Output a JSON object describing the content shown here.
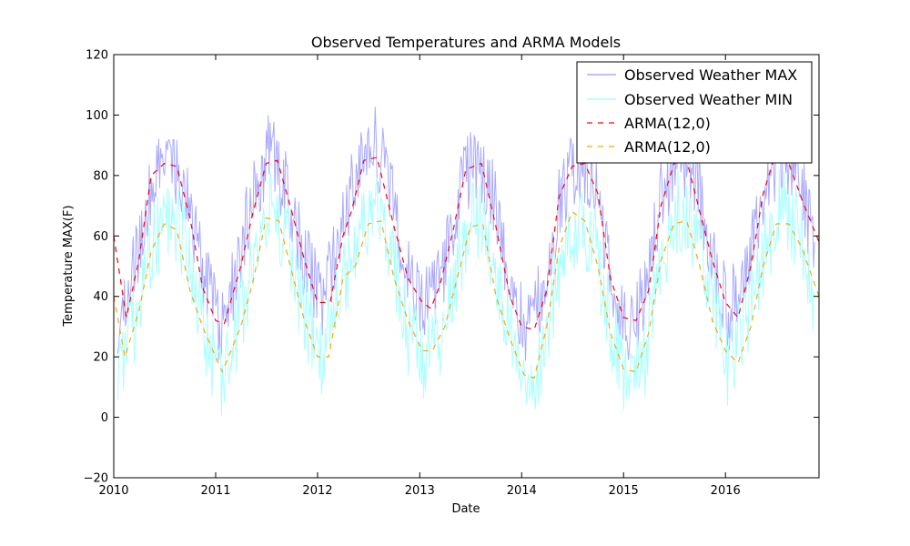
{
  "chart_data": {
    "type": "line",
    "title": "Observed Temperatures and ARMA Models",
    "xlabel": "Date",
    "ylabel": "Temperature MAX(F)",
    "x_range": [
      "2010-01-01",
      "2016-12-01"
    ],
    "ylim": [
      -20,
      120
    ],
    "x_ticks": [
      "2010",
      "2011",
      "2012",
      "2013",
      "2014",
      "2015",
      "2016"
    ],
    "y_ticks": [
      "−20",
      "0",
      "20",
      "40",
      "60",
      "80",
      "100",
      "120"
    ],
    "grid": false,
    "legend_position": "top-right",
    "series": [
      {
        "name": "Observed Weather MAX",
        "color": "#aaaaff",
        "style": "solid",
        "sampling": "daily",
        "values_monthly_approx": [
          {
            "x": "2010-01",
            "y": 32
          },
          {
            "x": "2010-03",
            "y": 52
          },
          {
            "x": "2010-05",
            "y": 75
          },
          {
            "x": "2010-07",
            "y": 86
          },
          {
            "x": "2010-09",
            "y": 75
          },
          {
            "x": "2010-11",
            "y": 50
          },
          {
            "x": "2011-01",
            "y": 30
          },
          {
            "x": "2011-03",
            "y": 48
          },
          {
            "x": "2011-05",
            "y": 74
          },
          {
            "x": "2011-07",
            "y": 89
          },
          {
            "x": "2011-09",
            "y": 74
          },
          {
            "x": "2011-11",
            "y": 52
          },
          {
            "x": "2012-01",
            "y": 38
          },
          {
            "x": "2012-03",
            "y": 58
          },
          {
            "x": "2012-05",
            "y": 80
          },
          {
            "x": "2012-07",
            "y": 92
          },
          {
            "x": "2012-09",
            "y": 78
          },
          {
            "x": "2012-11",
            "y": 48
          },
          {
            "x": "2013-01",
            "y": 38
          },
          {
            "x": "2013-03",
            "y": 44
          },
          {
            "x": "2013-05",
            "y": 72
          },
          {
            "x": "2013-07",
            "y": 86
          },
          {
            "x": "2013-09",
            "y": 76
          },
          {
            "x": "2013-11",
            "y": 48
          },
          {
            "x": "2014-01",
            "y": 28
          },
          {
            "x": "2014-03",
            "y": 40
          },
          {
            "x": "2014-05",
            "y": 72
          },
          {
            "x": "2014-07",
            "y": 84
          },
          {
            "x": "2014-09",
            "y": 80
          },
          {
            "x": "2014-11",
            "y": 48
          },
          {
            "x": "2015-01",
            "y": 30
          },
          {
            "x": "2015-03",
            "y": 38
          },
          {
            "x": "2015-05",
            "y": 72
          },
          {
            "x": "2015-07",
            "y": 86
          },
          {
            "x": "2015-09",
            "y": 80
          },
          {
            "x": "2015-11",
            "y": 55
          },
          {
            "x": "2016-01",
            "y": 34
          },
          {
            "x": "2016-03",
            "y": 52
          },
          {
            "x": "2016-05",
            "y": 72
          },
          {
            "x": "2016-07",
            "y": 88
          },
          {
            "x": "2016-09",
            "y": 80
          },
          {
            "x": "2016-11",
            "y": 58
          }
        ]
      },
      {
        "name": "Observed Weather MIN",
        "color": "#aaffff",
        "style": "solid",
        "sampling": "daily",
        "values_monthly_approx": [
          {
            "x": "2010-01",
            "y": 15
          },
          {
            "x": "2010-03",
            "y": 32
          },
          {
            "x": "2010-05",
            "y": 55
          },
          {
            "x": "2010-07",
            "y": 68
          },
          {
            "x": "2010-09",
            "y": 58
          },
          {
            "x": "2010-11",
            "y": 32
          },
          {
            "x": "2011-01",
            "y": 12
          },
          {
            "x": "2011-03",
            "y": 28
          },
          {
            "x": "2011-05",
            "y": 52
          },
          {
            "x": "2011-07",
            "y": 70
          },
          {
            "x": "2011-09",
            "y": 58
          },
          {
            "x": "2011-11",
            "y": 35
          },
          {
            "x": "2012-01",
            "y": 20
          },
          {
            "x": "2012-03",
            "y": 38
          },
          {
            "x": "2012-05",
            "y": 56
          },
          {
            "x": "2012-07",
            "y": 70
          },
          {
            "x": "2012-09",
            "y": 60
          },
          {
            "x": "2012-11",
            "y": 28
          },
          {
            "x": "2013-01",
            "y": 20
          },
          {
            "x": "2013-03",
            "y": 25
          },
          {
            "x": "2013-05",
            "y": 50
          },
          {
            "x": "2013-07",
            "y": 66
          },
          {
            "x": "2013-09",
            "y": 56
          },
          {
            "x": "2013-11",
            "y": 30
          },
          {
            "x": "2014-01",
            "y": 6
          },
          {
            "x": "2014-03",
            "y": 20
          },
          {
            "x": "2014-05",
            "y": 50
          },
          {
            "x": "2014-07",
            "y": 64
          },
          {
            "x": "2014-09",
            "y": 60
          },
          {
            "x": "2014-11",
            "y": 30
          },
          {
            "x": "2015-01",
            "y": 10
          },
          {
            "x": "2015-03",
            "y": 18
          },
          {
            "x": "2015-05",
            "y": 52
          },
          {
            "x": "2015-07",
            "y": 68
          },
          {
            "x": "2015-09",
            "y": 62
          },
          {
            "x": "2015-11",
            "y": 38
          },
          {
            "x": "2016-01",
            "y": 15
          },
          {
            "x": "2016-03",
            "y": 32
          },
          {
            "x": "2016-05",
            "y": 52
          },
          {
            "x": "2016-07",
            "y": 70
          },
          {
            "x": "2016-09",
            "y": 62
          },
          {
            "x": "2016-11",
            "y": 40
          }
        ]
      },
      {
        "name": "ARMA(12,0)",
        "color": "#ff0000",
        "style": "dashed",
        "values": [
          {
            "x": "2010-01-01",
            "y": 60
          },
          {
            "x": "2010-02-15",
            "y": 33
          },
          {
            "x": "2010-04-01",
            "y": 52
          },
          {
            "x": "2010-05-15",
            "y": 80
          },
          {
            "x": "2010-07-01",
            "y": 84
          },
          {
            "x": "2010-08-15",
            "y": 83
          },
          {
            "x": "2010-10-01",
            "y": 66
          },
          {
            "x": "2010-11-15",
            "y": 43
          },
          {
            "x": "2011-01-01",
            "y": 32
          },
          {
            "x": "2011-02-01",
            "y": 31
          },
          {
            "x": "2011-04-01",
            "y": 50
          },
          {
            "x": "2011-05-15",
            "y": 68
          },
          {
            "x": "2011-07-01",
            "y": 84
          },
          {
            "x": "2011-08-10",
            "y": 85
          },
          {
            "x": "2011-10-01",
            "y": 68
          },
          {
            "x": "2011-11-15",
            "y": 52
          },
          {
            "x": "2012-01-01",
            "y": 38
          },
          {
            "x": "2012-02-15",
            "y": 38
          },
          {
            "x": "2012-04-01",
            "y": 60
          },
          {
            "x": "2012-05-01",
            "y": 68
          },
          {
            "x": "2012-06-15",
            "y": 85
          },
          {
            "x": "2012-08-01",
            "y": 86
          },
          {
            "x": "2012-10-01",
            "y": 63
          },
          {
            "x": "2012-11-20",
            "y": 46
          },
          {
            "x": "2013-01-10",
            "y": 38
          },
          {
            "x": "2013-02-10",
            "y": 36
          },
          {
            "x": "2013-03-15",
            "y": 44
          },
          {
            "x": "2013-05-01",
            "y": 62
          },
          {
            "x": "2013-06-15",
            "y": 82
          },
          {
            "x": "2013-08-10",
            "y": 84
          },
          {
            "x": "2013-10-01",
            "y": 63
          },
          {
            "x": "2013-11-20",
            "y": 40
          },
          {
            "x": "2014-01-01",
            "y": 30
          },
          {
            "x": "2014-02-15",
            "y": 29
          },
          {
            "x": "2014-04-01",
            "y": 42
          },
          {
            "x": "2014-05-15",
            "y": 73
          },
          {
            "x": "2014-07-01",
            "y": 83
          },
          {
            "x": "2014-08-15",
            "y": 84
          },
          {
            "x": "2014-10-01",
            "y": 74
          },
          {
            "x": "2014-11-15",
            "y": 46
          },
          {
            "x": "2015-01-01",
            "y": 33
          },
          {
            "x": "2015-02-15",
            "y": 32
          },
          {
            "x": "2015-04-01",
            "y": 42
          },
          {
            "x": "2015-05-15",
            "y": 70
          },
          {
            "x": "2015-07-01",
            "y": 84
          },
          {
            "x": "2015-08-15",
            "y": 85
          },
          {
            "x": "2015-10-01",
            "y": 68
          },
          {
            "x": "2015-11-15",
            "y": 52
          },
          {
            "x": "2016-01-01",
            "y": 38
          },
          {
            "x": "2016-02-15",
            "y": 33
          },
          {
            "x": "2016-04-01",
            "y": 50
          },
          {
            "x": "2016-05-15",
            "y": 74
          },
          {
            "x": "2016-07-01",
            "y": 88
          },
          {
            "x": "2016-08-15",
            "y": 84
          },
          {
            "x": "2016-10-01",
            "y": 72
          },
          {
            "x": "2016-12-01",
            "y": 58
          }
        ]
      },
      {
        "name": "ARMA(12,0)",
        "color": "#ffa500",
        "style": "dashed",
        "values": [
          {
            "x": "2010-01-01",
            "y": 40
          },
          {
            "x": "2010-02-10",
            "y": 20
          },
          {
            "x": "2010-04-01",
            "y": 35
          },
          {
            "x": "2010-05-15",
            "y": 55
          },
          {
            "x": "2010-07-01",
            "y": 64
          },
          {
            "x": "2010-08-15",
            "y": 62
          },
          {
            "x": "2010-10-01",
            "y": 42
          },
          {
            "x": "2010-11-15",
            "y": 30
          },
          {
            "x": "2011-01-01",
            "y": 20
          },
          {
            "x": "2011-01-25",
            "y": 15
          },
          {
            "x": "2011-04-01",
            "y": 30
          },
          {
            "x": "2011-05-15",
            "y": 45
          },
          {
            "x": "2011-07-01",
            "y": 66
          },
          {
            "x": "2011-08-15",
            "y": 65
          },
          {
            "x": "2011-10-01",
            "y": 48
          },
          {
            "x": "2011-11-15",
            "y": 32
          },
          {
            "x": "2012-01-01",
            "y": 20
          },
          {
            "x": "2012-02-10",
            "y": 20
          },
          {
            "x": "2012-04-01",
            "y": 46
          },
          {
            "x": "2012-05-15",
            "y": 50
          },
          {
            "x": "2012-07-01",
            "y": 64
          },
          {
            "x": "2012-08-15",
            "y": 65
          },
          {
            "x": "2012-10-01",
            "y": 46
          },
          {
            "x": "2012-11-20",
            "y": 32
          },
          {
            "x": "2013-01-10",
            "y": 22
          },
          {
            "x": "2013-02-15",
            "y": 22
          },
          {
            "x": "2013-04-01",
            "y": 30
          },
          {
            "x": "2013-05-15",
            "y": 46
          },
          {
            "x": "2013-07-01",
            "y": 63
          },
          {
            "x": "2013-08-15",
            "y": 64
          },
          {
            "x": "2013-10-01",
            "y": 40
          },
          {
            "x": "2013-11-20",
            "y": 26
          },
          {
            "x": "2014-01-10",
            "y": 14
          },
          {
            "x": "2014-02-15",
            "y": 13
          },
          {
            "x": "2014-04-01",
            "y": 30
          },
          {
            "x": "2014-05-15",
            "y": 56
          },
          {
            "x": "2014-07-01",
            "y": 68
          },
          {
            "x": "2014-08-15",
            "y": 65
          },
          {
            "x": "2014-10-01",
            "y": 50
          },
          {
            "x": "2014-11-15",
            "y": 28
          },
          {
            "x": "2015-01-01",
            "y": 16
          },
          {
            "x": "2015-02-15",
            "y": 15
          },
          {
            "x": "2015-04-01",
            "y": 28
          },
          {
            "x": "2015-05-15",
            "y": 52
          },
          {
            "x": "2015-07-01",
            "y": 64
          },
          {
            "x": "2015-08-15",
            "y": 65
          },
          {
            "x": "2015-10-01",
            "y": 50
          },
          {
            "x": "2015-11-15",
            "y": 32
          },
          {
            "x": "2016-01-01",
            "y": 22
          },
          {
            "x": "2016-02-15",
            "y": 18
          },
          {
            "x": "2016-04-01",
            "y": 30
          },
          {
            "x": "2016-05-15",
            "y": 50
          },
          {
            "x": "2016-07-01",
            "y": 64
          },
          {
            "x": "2016-08-15",
            "y": 64
          },
          {
            "x": "2016-10-01",
            "y": 56
          },
          {
            "x": "2016-12-01",
            "y": 40
          }
        ]
      }
    ]
  }
}
